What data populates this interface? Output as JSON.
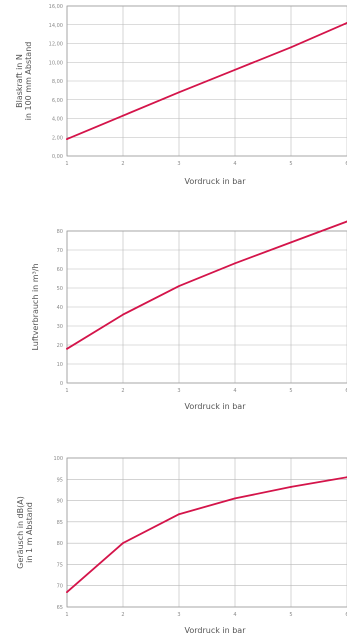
{
  "colors": {
    "line": "#d4144a",
    "grid": "#b9b9b9"
  },
  "chart_data": [
    {
      "type": "line",
      "xlabel": "Vordruck in bar",
      "ylabel_lines": [
        "Blaskraft in N",
        "in 100 mm Abstand"
      ],
      "x": [
        1,
        2,
        3,
        4,
        5,
        6
      ],
      "xticks": [
        "1",
        "2",
        "3",
        "4",
        "5",
        "6"
      ],
      "xlim": [
        1,
        6
      ],
      "ylim": [
        0,
        16
      ],
      "yticks": [
        "0,00",
        "2,00",
        "4,00",
        "6,00",
        "8,00",
        "10,00",
        "12,00",
        "14,00",
        "16,00"
      ],
      "grid": true,
      "series": [
        {
          "values": [
            1.8,
            4.3,
            6.8,
            9.2,
            11.6,
            14.2
          ]
        }
      ]
    },
    {
      "type": "line",
      "xlabel": "Vordruck in bar",
      "ylabel_lines": [
        "Luftverbrauch in m³/h"
      ],
      "x": [
        1,
        2,
        3,
        4,
        5,
        6
      ],
      "xticks": [
        "1",
        "2",
        "3",
        "4",
        "5",
        "6"
      ],
      "xlim": [
        1,
        6
      ],
      "ylim": [
        0,
        80
      ],
      "yticks": [
        "0",
        "10",
        "20",
        "30",
        "40",
        "50",
        "60",
        "70",
        "80"
      ],
      "grid": true,
      "series": [
        {
          "values": [
            18,
            36,
            51,
            63,
            74,
            85
          ]
        }
      ]
    },
    {
      "type": "line",
      "xlabel": "Vordruck in bar",
      "ylabel_lines": [
        "Geräusch in dB(A)",
        "in 1 m Abstand"
      ],
      "x": [
        1,
        2,
        3,
        4,
        5,
        6
      ],
      "xticks": [
        "1",
        "2",
        "3",
        "4",
        "5",
        "6"
      ],
      "xlim": [
        1,
        6
      ],
      "ylim": [
        65,
        100
      ],
      "yticks": [
        "65",
        "70",
        "75",
        "80",
        "85",
        "90",
        "95",
        "100"
      ],
      "grid": true,
      "series": [
        {
          "values": [
            68.5,
            80,
            86.8,
            90.5,
            93.2,
            95.5
          ]
        }
      ]
    }
  ]
}
